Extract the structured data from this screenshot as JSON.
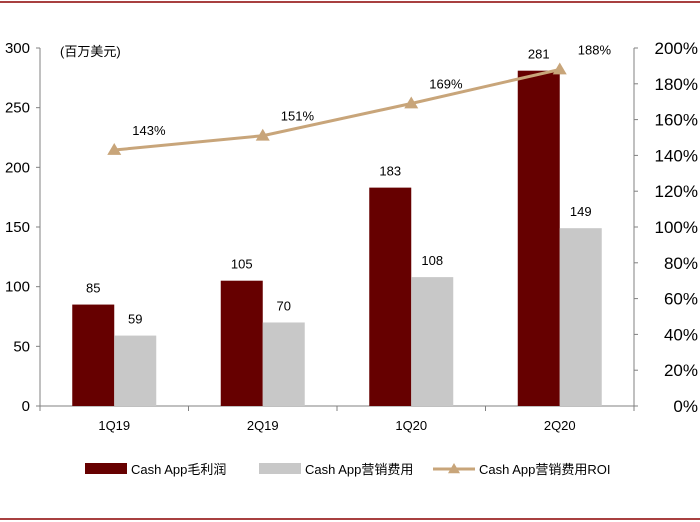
{
  "chart_data": {
    "type": "bar",
    "unit_label": "(百万美元)",
    "categories": [
      "1Q19",
      "2Q19",
      "1Q20",
      "2Q20"
    ],
    "series": [
      {
        "name": "Cash App毛利润",
        "kind": "bar",
        "axis": "left",
        "color": "#660000",
        "values": [
          85,
          105,
          183,
          281
        ]
      },
      {
        "name": "Cash App营销费用",
        "kind": "bar",
        "axis": "left",
        "color": "#c8c8c8",
        "values": [
          59,
          70,
          108,
          149
        ]
      },
      {
        "name": "Cash App营销费用ROI",
        "kind": "line",
        "axis": "right",
        "color": "#c8a57a",
        "marker": "triangle",
        "values": [
          143,
          151,
          169,
          188
        ],
        "labels": [
          "143%",
          "151%",
          "169%",
          "188%"
        ]
      }
    ],
    "left_axis": {
      "min": 0,
      "max": 300,
      "ticks": [
        "0",
        "50",
        "100",
        "150",
        "200",
        "250",
        "300"
      ]
    },
    "right_axis": {
      "min": 0,
      "max": 200,
      "ticks": [
        "0%",
        "20%",
        "40%",
        "60%",
        "80%",
        "100%",
        "120%",
        "140%",
        "160%",
        "180%",
        "200%"
      ]
    },
    "legend_position": "bottom",
    "grid": false,
    "frame_color": "#8b0000"
  }
}
